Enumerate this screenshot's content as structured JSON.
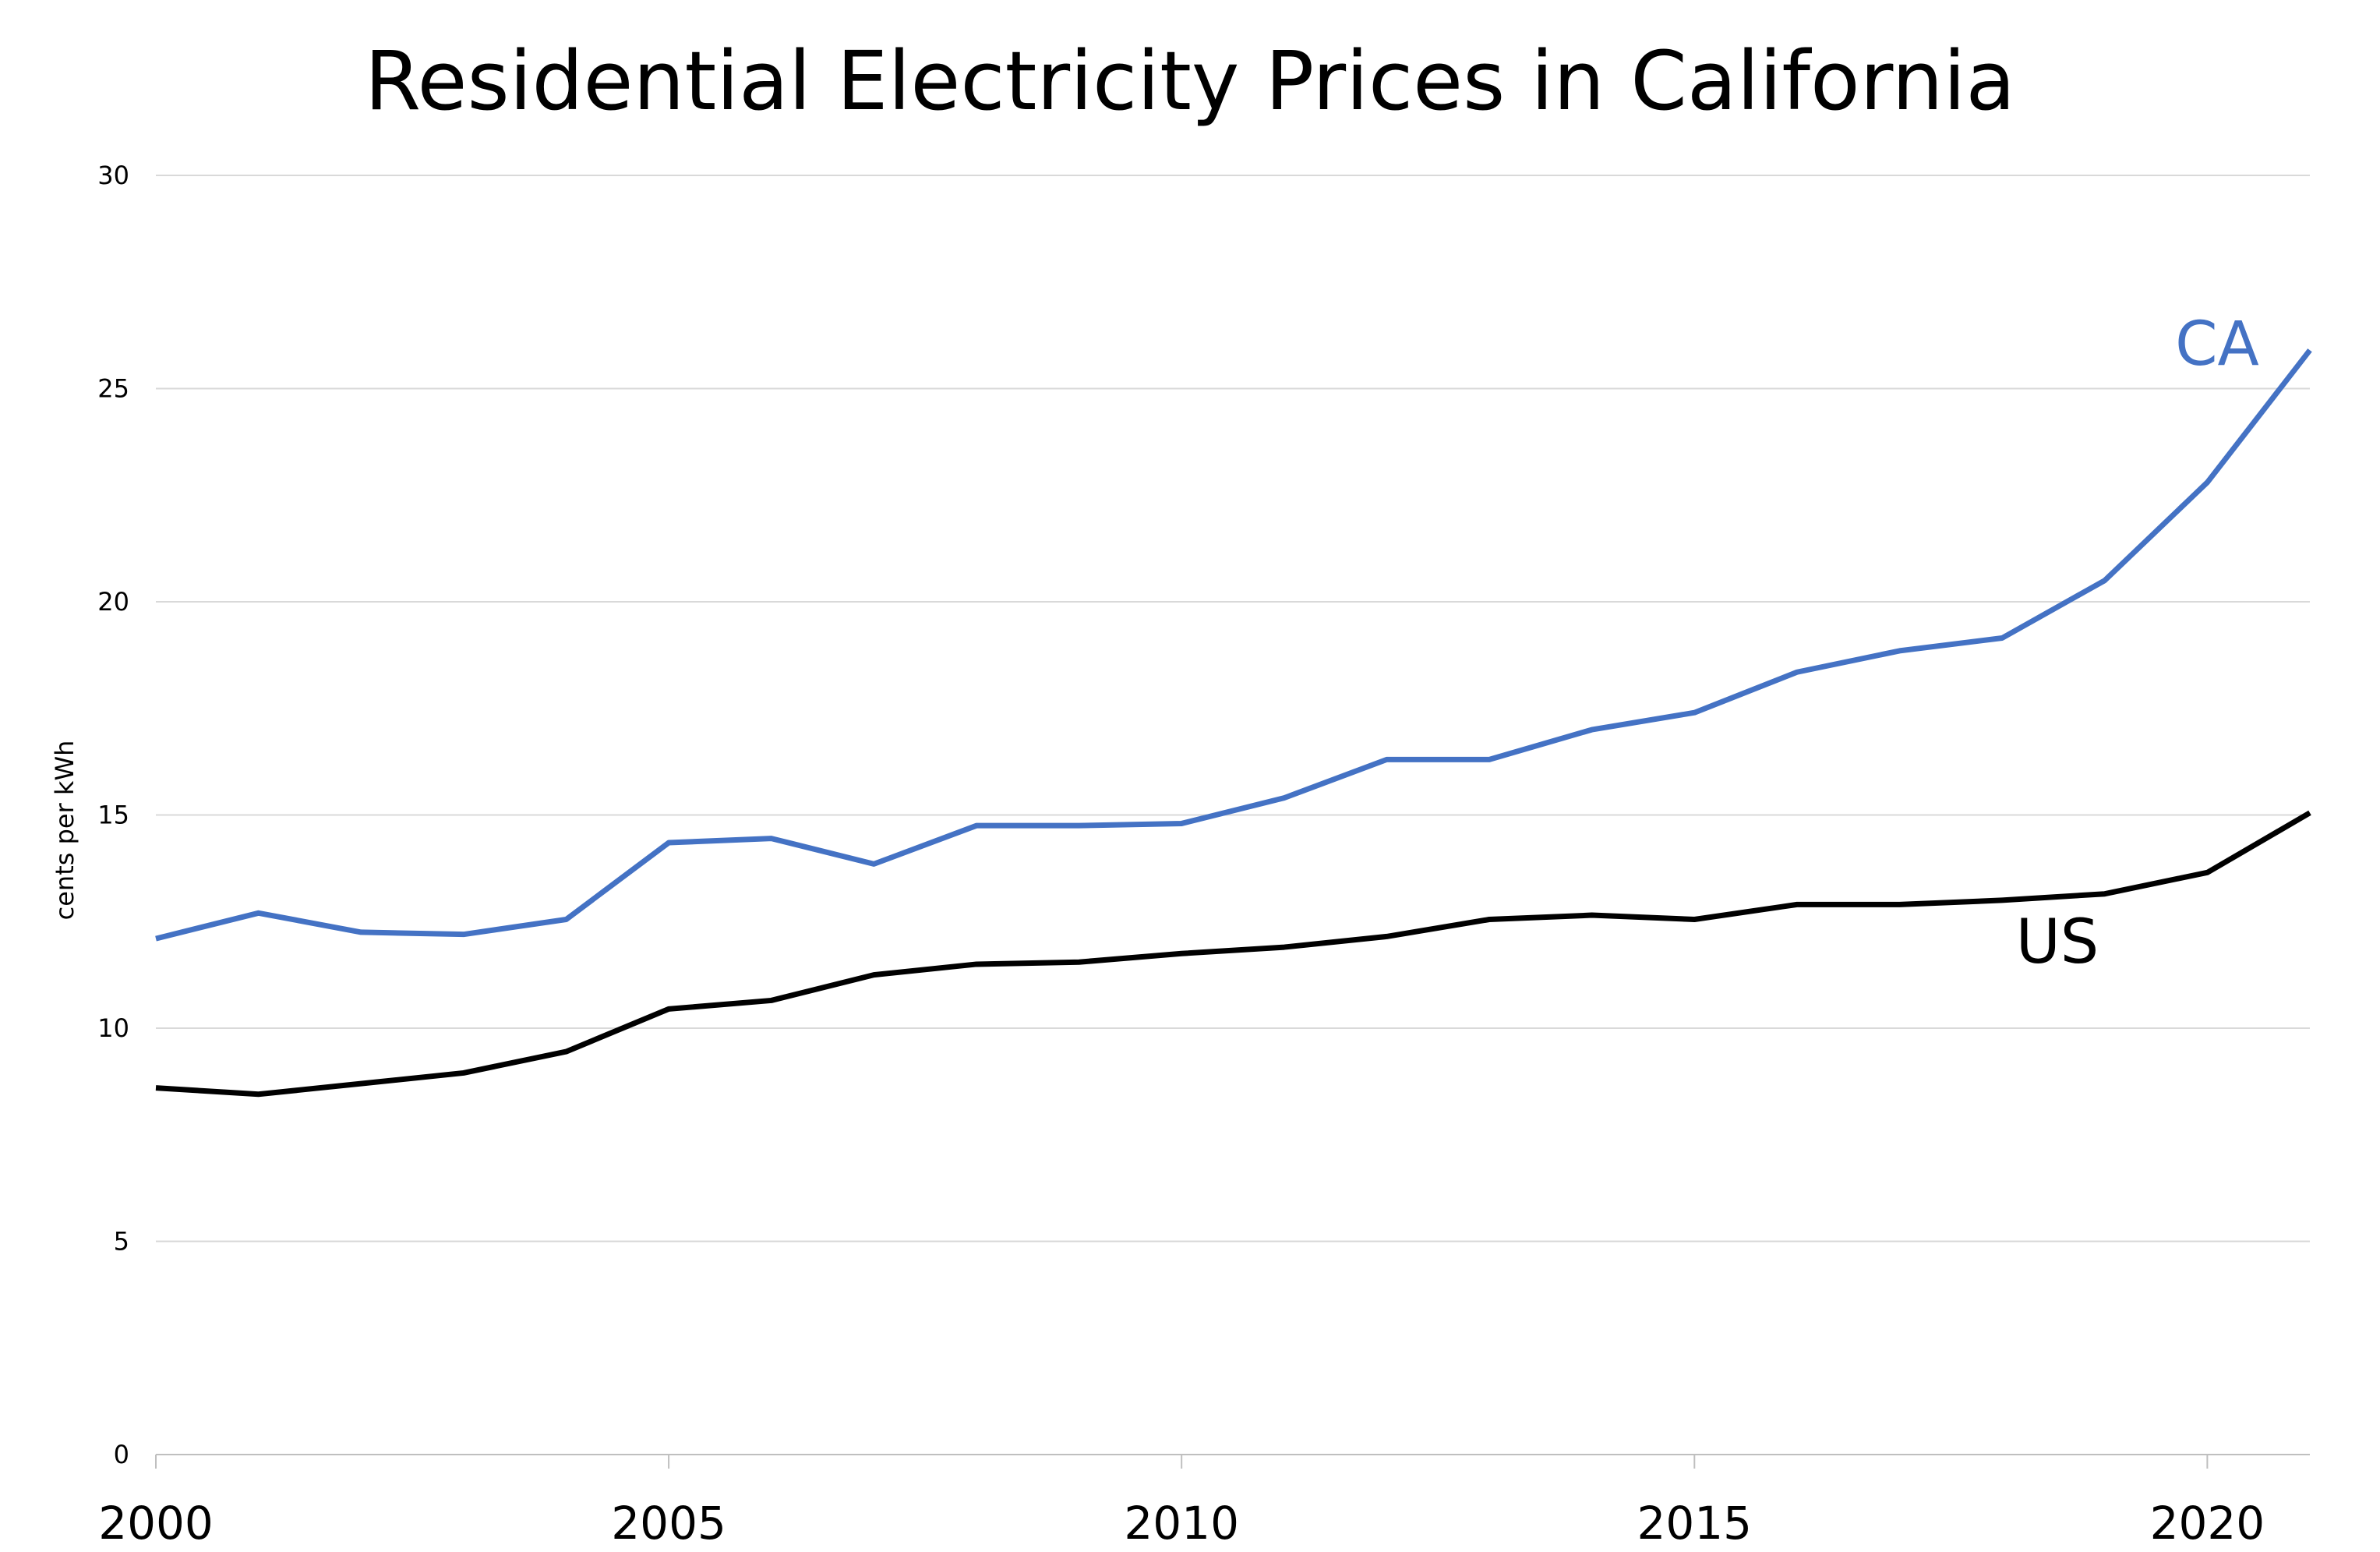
{
  "chart_data": {
    "type": "line",
    "title": "Residential Electricity Prices in California",
    "xlabel": "",
    "ylabel": "cents per kWh",
    "xlim": [
      2000,
      2021
    ],
    "ylim": [
      0,
      30
    ],
    "x_ticks": [
      2000,
      2005,
      2010,
      2015,
      2020
    ],
    "y_ticks": [
      0,
      5,
      10,
      15,
      20,
      25,
      30
    ],
    "grid": true,
    "legend": "none",
    "x": [
      2000,
      2001,
      2002,
      2003,
      2004,
      2005,
      2006,
      2007,
      2008,
      2009,
      2010,
      2011,
      2012,
      2013,
      2014,
      2015,
      2016,
      2017,
      2018,
      2019,
      2020,
      2021
    ],
    "series": [
      {
        "name": "CA",
        "color": "#4472c4",
        "values": [
          12.1,
          12.7,
          12.25,
          12.2,
          12.55,
          14.35,
          14.45,
          13.85,
          14.75,
          14.75,
          14.8,
          15.4,
          16.3,
          16.3,
          17.0,
          17.4,
          18.35,
          18.85,
          19.15,
          20.5,
          22.8,
          25.9
        ]
      },
      {
        "name": "US",
        "color": "#000000",
        "values": [
          8.6,
          8.45,
          8.7,
          8.95,
          9.45,
          10.45,
          10.65,
          11.25,
          11.5,
          11.55,
          11.75,
          11.9,
          12.15,
          12.55,
          12.65,
          12.55,
          12.9,
          12.9,
          13.0,
          13.15,
          13.65,
          15.05
        ]
      }
    ]
  }
}
